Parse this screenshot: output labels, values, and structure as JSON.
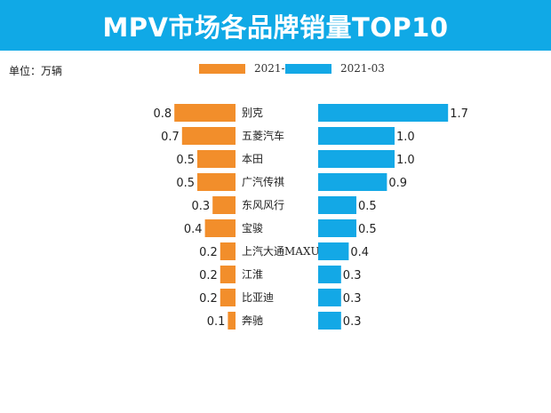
{
  "header": {
    "title": "MPV市场各品牌销量TOP10"
  },
  "unit_label": "单位：万辆",
  "colors": {
    "header_bg": "#10a9e6",
    "series_left": "#f28e2b",
    "series_right": "#13a8e6"
  },
  "chart_data": {
    "type": "bar",
    "layout": "butterfly",
    "categories": [
      "别克",
      "五菱汽车",
      "本田",
      "广汽传祺",
      "东风风行",
      "宝骏",
      "上汽大通MAXUS",
      "江淮",
      "比亚迪",
      "奔驰"
    ],
    "series": [
      {
        "name": "2021-02",
        "values": [
          0.8,
          0.7,
          0.5,
          0.5,
          0.3,
          0.4,
          0.2,
          0.2,
          0.2,
          0.1
        ],
        "labels": [
          "0.8",
          "0.7",
          "0.5",
          "0.5",
          "0.3",
          "0.4",
          "0.2",
          "0.2",
          "0.2",
          "0.1"
        ]
      },
      {
        "name": "2021-03",
        "values": [
          1.7,
          1.0,
          1.0,
          0.9,
          0.5,
          0.5,
          0.4,
          0.3,
          0.3,
          0.3
        ],
        "labels": [
          "1.7",
          "1.0",
          "1.0",
          "0.9",
          "0.5",
          "0.5",
          "0.4",
          "0.3",
          "0.3",
          "0.3"
        ]
      }
    ],
    "title": "MPV市场各品牌销量TOP10",
    "legend_position": "top-center",
    "grid": false
  }
}
